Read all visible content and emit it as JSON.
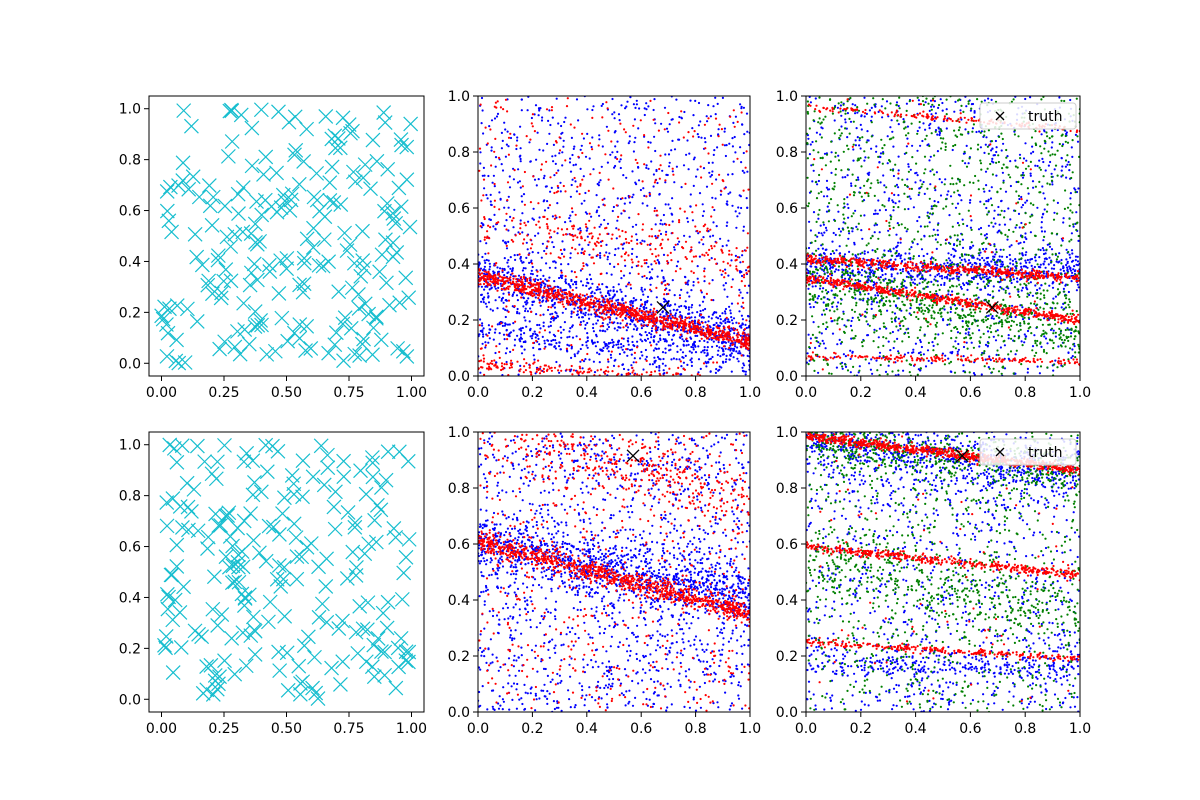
{
  "figure": {
    "background": "#ffffff"
  },
  "chart_data": [
    {
      "id": "top-left",
      "type": "scatter",
      "marker": "x-large",
      "color": "#17becf",
      "xlim": [
        -0.05,
        1.05
      ],
      "ylim": [
        -0.05,
        1.05
      ],
      "xticks": [
        0.0,
        0.25,
        0.5,
        0.75,
        1.0
      ],
      "xtick_labels": [
        "0.00",
        "0.25",
        "0.50",
        "0.75",
        "1.00"
      ],
      "yticks": [
        0.0,
        0.2,
        0.4,
        0.6,
        0.8,
        1.0
      ],
      "ytick_labels": [
        "0.0",
        "0.2",
        "0.4",
        "0.6",
        "0.8",
        "1.0"
      ],
      "series": [
        {
          "count": 220,
          "seed": 11
        }
      ]
    },
    {
      "id": "top-middle",
      "type": "scatter",
      "marker": "dot",
      "xlim": [
        0,
        1
      ],
      "ylim": [
        0,
        1
      ],
      "xticks": [
        0.0,
        0.2,
        0.4,
        0.6,
        0.8,
        1.0
      ],
      "xtick_labels": [
        "0.0",
        "0.2",
        "0.4",
        "0.6",
        "0.8",
        "1.0"
      ],
      "yticks": [
        0.0,
        0.2,
        0.4,
        0.6,
        0.8,
        1.0
      ],
      "ytick_labels": [
        "0.0",
        "0.2",
        "0.4",
        "0.6",
        "0.8",
        "1.0"
      ],
      "series": [
        {
          "color": "#0000ff",
          "seed": 21,
          "count": 2200,
          "bands": [
            {
              "y0": 0.36,
              "slope": -0.24,
              "spread": 0.05,
              "weight": 0.45
            },
            {
              "y0": 0.16,
              "slope": -0.12,
              "spread": 0.03,
              "weight": 0.1
            }
          ],
          "uniform_fraction": 0.45
        },
        {
          "color": "#ff0000",
          "seed": 22,
          "count": 1700,
          "bands": [
            {
              "y0": 0.36,
              "slope": -0.24,
              "spread": 0.015,
              "weight": 0.55
            },
            {
              "y0": 0.04,
              "slope": -0.06,
              "spread": 0.01,
              "weight": 0.1
            },
            {
              "y0": 0.55,
              "slope": -0.15,
              "spread": 0.04,
              "weight": 0.1
            }
          ],
          "uniform_fraction": 0.25
        }
      ],
      "truth": {
        "x": 0.68,
        "y": 0.245,
        "color": "#000000",
        "marker": "x"
      }
    },
    {
      "id": "top-right",
      "type": "scatter",
      "marker": "dot",
      "xlim": [
        0,
        1
      ],
      "ylim": [
        0,
        1
      ],
      "xticks": [
        0.0,
        0.2,
        0.4,
        0.6,
        0.8,
        1.0
      ],
      "xtick_labels": [
        "0.0",
        "0.2",
        "0.4",
        "0.6",
        "0.8",
        "1.0"
      ],
      "yticks": [
        0.0,
        0.2,
        0.4,
        0.6,
        0.8,
        1.0
      ],
      "ytick_labels": [
        "0.0",
        "0.2",
        "0.4",
        "0.6",
        "0.8",
        "1.0"
      ],
      "series": [
        {
          "color": "#0000ff",
          "seed": 31,
          "count": 1700,
          "bands": [
            {
              "y0": 0.38,
              "slope": 0.0,
              "spread": 0.04,
              "weight": 0.35
            }
          ],
          "uniform_fraction": 0.65
        },
        {
          "color": "#008000",
          "seed": 32,
          "count": 1500,
          "bands": [
            {
              "y0": 0.35,
              "slope": -0.2,
              "spread": 0.06,
              "weight": 0.3
            }
          ],
          "uniform_fraction": 0.7
        },
        {
          "color": "#ff0000",
          "seed": 33,
          "count": 1400,
          "bands": [
            {
              "y0": 0.35,
              "slope": -0.15,
              "spread": 0.008,
              "weight": 0.35
            },
            {
              "y0": 0.42,
              "slope": -0.07,
              "spread": 0.008,
              "weight": 0.3
            },
            {
              "y0": 0.96,
              "slope": -0.08,
              "spread": 0.006,
              "weight": 0.1
            },
            {
              "y0": 0.07,
              "slope": -0.02,
              "spread": 0.006,
              "weight": 0.1
            }
          ],
          "uniform_fraction": 0.05
        }
      ],
      "truth": {
        "x": 0.68,
        "y": 0.245,
        "color": "#000000",
        "marker": "x"
      },
      "legend": {
        "placement": "top-right",
        "entries": [
          {
            "label": "truth",
            "marker": "x",
            "color": "#000000"
          }
        ]
      }
    },
    {
      "id": "bottom-left",
      "type": "scatter",
      "marker": "x-large",
      "color": "#17becf",
      "xlim": [
        -0.05,
        1.05
      ],
      "ylim": [
        -0.05,
        1.05
      ],
      "xticks": [
        0.0,
        0.25,
        0.5,
        0.75,
        1.0
      ],
      "xtick_labels": [
        "0.00",
        "0.25",
        "0.50",
        "0.75",
        "1.00"
      ],
      "yticks": [
        0.0,
        0.2,
        0.4,
        0.6,
        0.8,
        1.0
      ],
      "ytick_labels": [
        "0.0",
        "0.2",
        "0.4",
        "0.6",
        "0.8",
        "1.0"
      ],
      "series": [
        {
          "count": 220,
          "seed": 41
        }
      ]
    },
    {
      "id": "bottom-middle",
      "type": "scatter",
      "marker": "dot",
      "xlim": [
        0,
        1
      ],
      "ylim": [
        0,
        1
      ],
      "xticks": [
        0.0,
        0.2,
        0.4,
        0.6,
        0.8,
        1.0
      ],
      "xtick_labels": [
        "0.0",
        "0.2",
        "0.4",
        "0.6",
        "0.8",
        "1.0"
      ],
      "yticks": [
        0.0,
        0.2,
        0.4,
        0.6,
        0.8,
        1.0
      ],
      "ytick_labels": [
        "0.0",
        "0.2",
        "0.4",
        "0.6",
        "0.8",
        "1.0"
      ],
      "series": [
        {
          "color": "#0000ff",
          "seed": 51,
          "count": 2300,
          "bands": [
            {
              "y0": 0.61,
              "slope": -0.2,
              "spread": 0.05,
              "weight": 0.4
            }
          ],
          "uniform_fraction": 0.6
        },
        {
          "color": "#ff0000",
          "seed": 52,
          "count": 1800,
          "bands": [
            {
              "y0": 0.61,
              "slope": -0.26,
              "spread": 0.018,
              "weight": 0.5
            },
            {
              "y0": 1.05,
              "slope": -0.3,
              "spread": 0.06,
              "weight": 0.2
            }
          ],
          "uniform_fraction": 0.3
        }
      ],
      "truth": {
        "x": 0.57,
        "y": 0.915,
        "color": "#000000",
        "marker": "x"
      }
    },
    {
      "id": "bottom-right",
      "type": "scatter",
      "marker": "dot",
      "xlim": [
        0,
        1
      ],
      "ylim": [
        0,
        1
      ],
      "xticks": [
        0.0,
        0.2,
        0.4,
        0.6,
        0.8,
        1.0
      ],
      "xtick_labels": [
        "0.0",
        "0.2",
        "0.4",
        "0.6",
        "0.8",
        "1.0"
      ],
      "yticks": [
        0.0,
        0.2,
        0.4,
        0.6,
        0.8,
        1.0
      ],
      "ytick_labels": [
        "0.0",
        "0.2",
        "0.4",
        "0.6",
        "0.8",
        "1.0"
      ],
      "series": [
        {
          "color": "#0000ff",
          "seed": 61,
          "count": 1900,
          "bands": [
            {
              "y0": 0.97,
              "slope": -0.12,
              "spread": 0.05,
              "weight": 0.35
            },
            {
              "y0": 0.17,
              "slope": 0.0,
              "spread": 0.03,
              "weight": 0.15
            }
          ],
          "uniform_fraction": 0.5
        },
        {
          "color": "#008000",
          "seed": 62,
          "count": 1600,
          "bands": [
            {
              "y0": 0.97,
              "slope": -0.12,
              "spread": 0.04,
              "weight": 0.25
            },
            {
              "y0": 0.55,
              "slope": -0.2,
              "spread": 0.06,
              "weight": 0.2
            }
          ],
          "uniform_fraction": 0.55
        },
        {
          "color": "#ff0000",
          "seed": 63,
          "count": 1400,
          "bands": [
            {
              "y0": 0.985,
              "slope": -0.12,
              "spread": 0.008,
              "weight": 0.4
            },
            {
              "y0": 0.59,
              "slope": -0.1,
              "spread": 0.008,
              "weight": 0.3
            },
            {
              "y0": 0.25,
              "slope": -0.06,
              "spread": 0.006,
              "weight": 0.15
            }
          ],
          "uniform_fraction": 0.05
        }
      ],
      "truth": {
        "x": 0.57,
        "y": 0.915,
        "color": "#000000",
        "marker": "x"
      },
      "legend": {
        "placement": "top-right",
        "entries": [
          {
            "label": "truth",
            "marker": "x",
            "color": "#000000"
          }
        ]
      }
    }
  ]
}
